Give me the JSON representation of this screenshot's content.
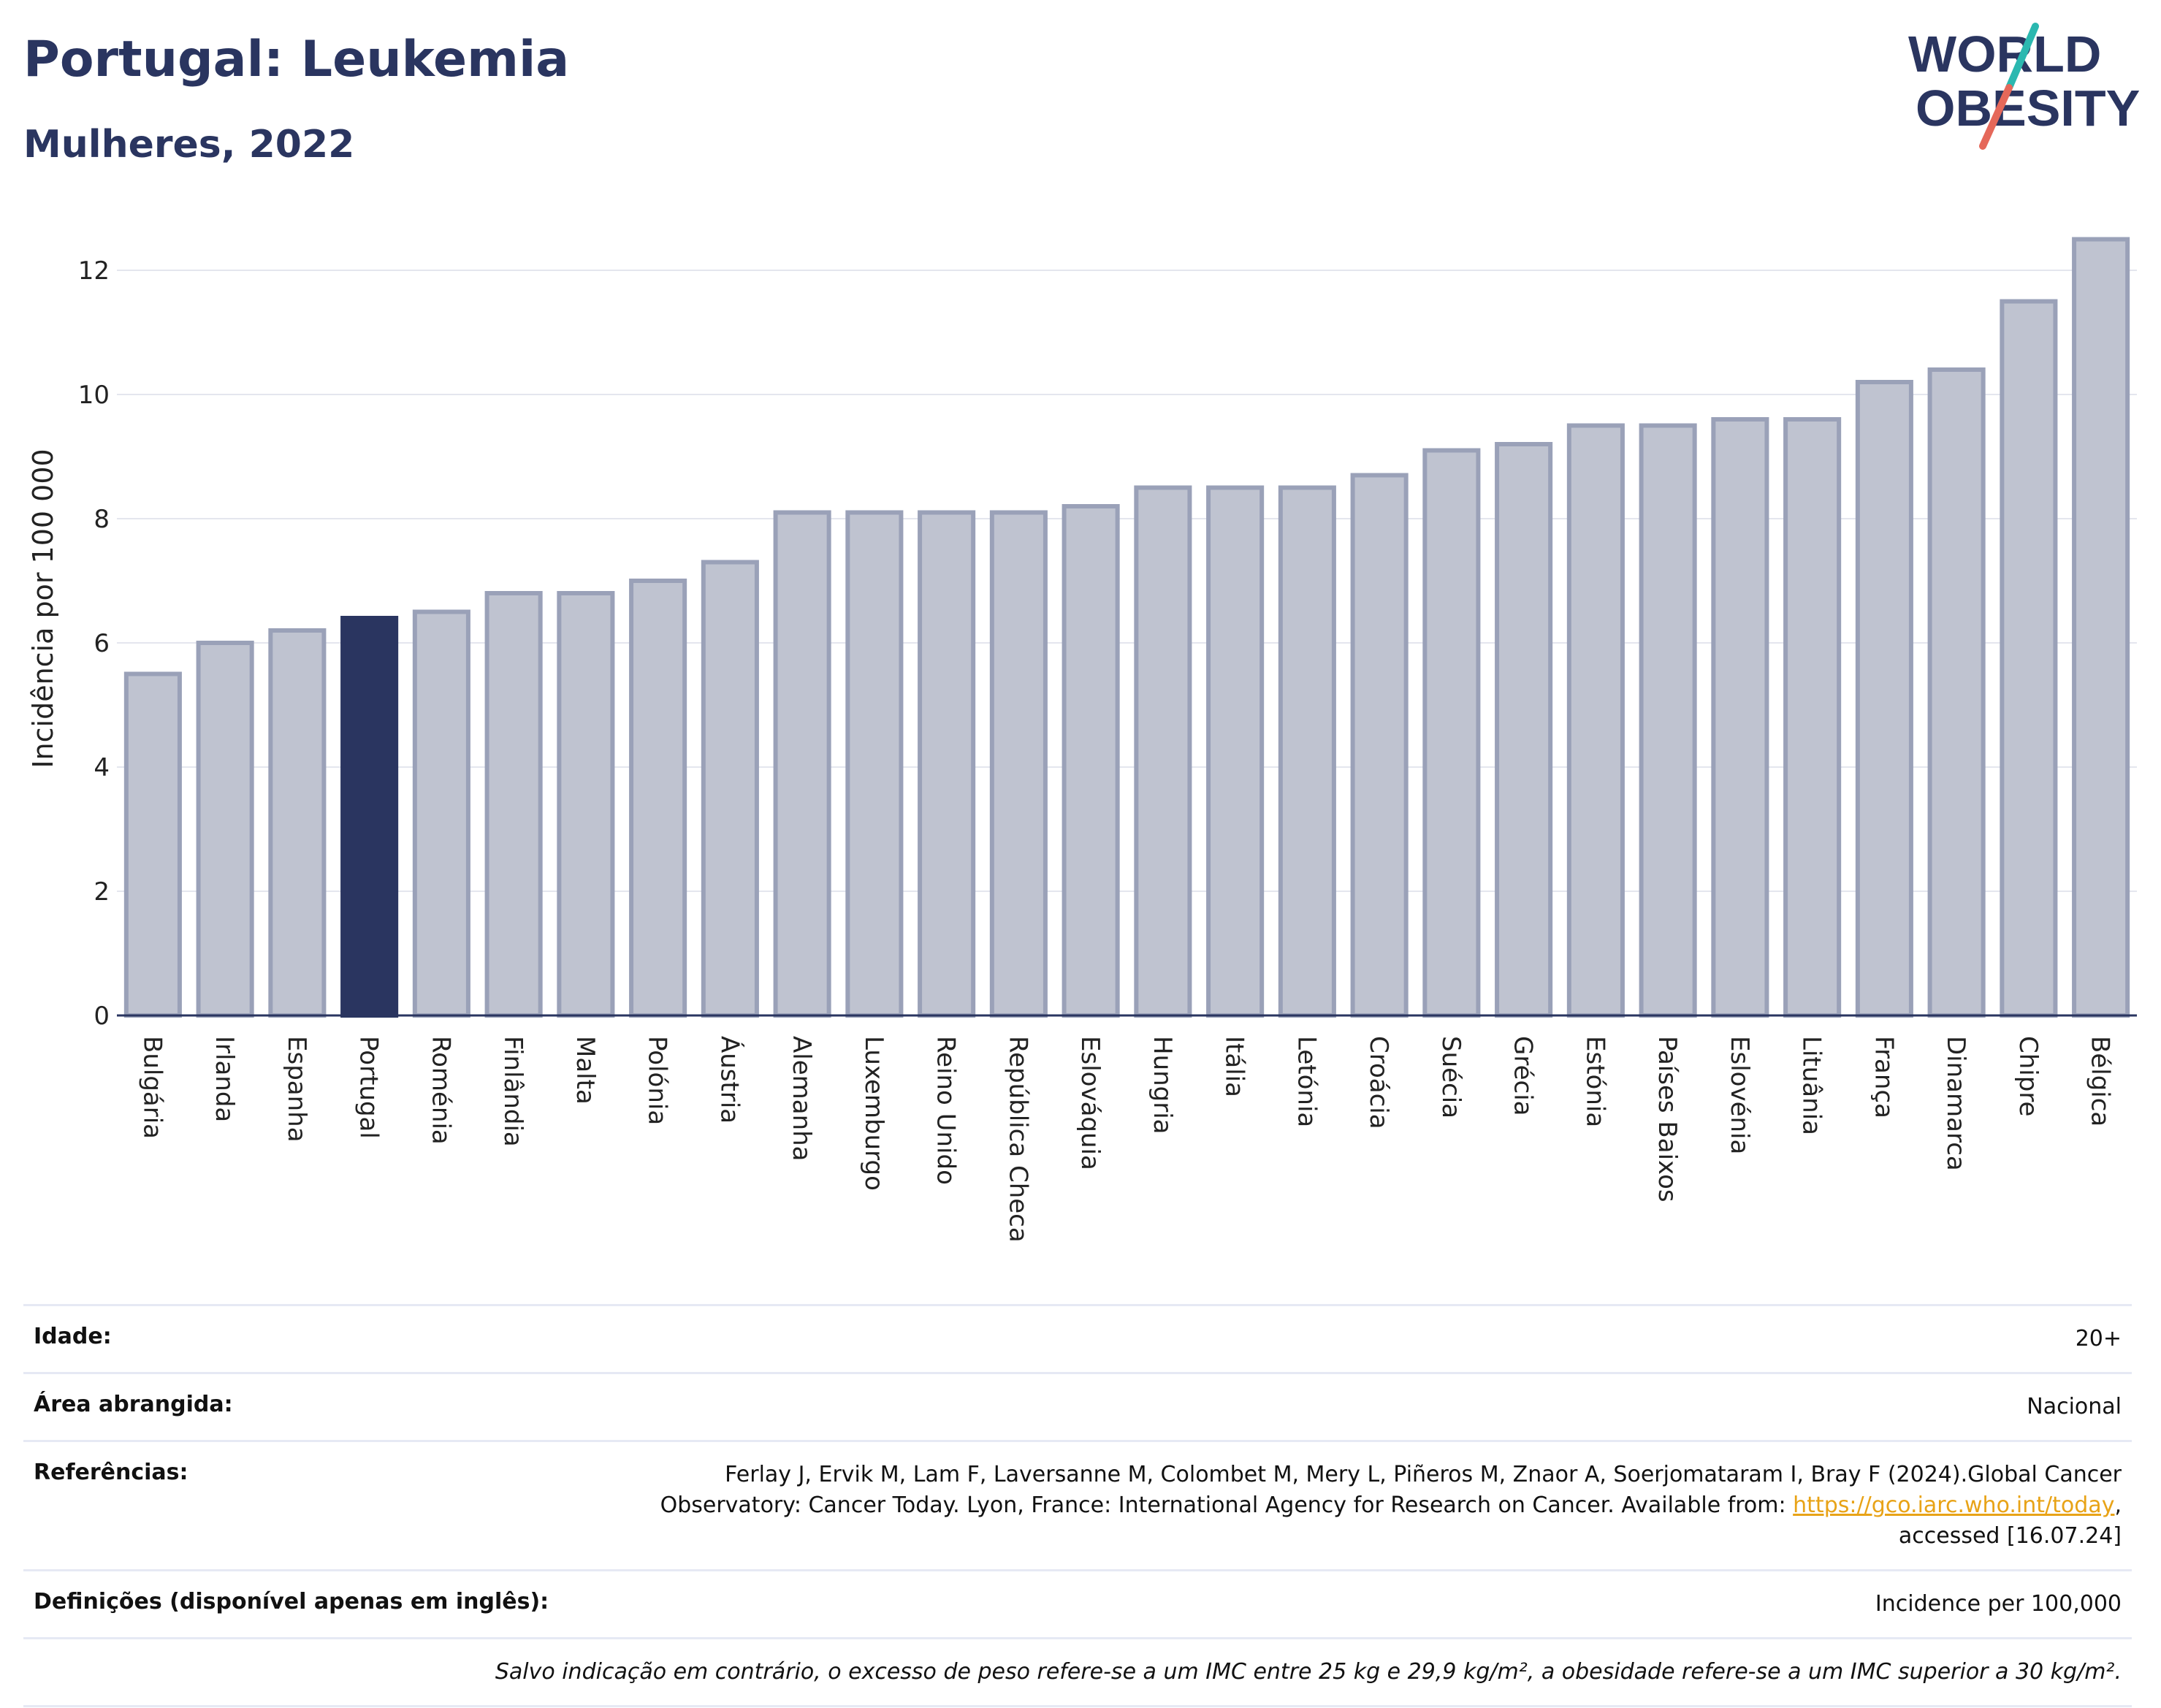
{
  "header": {
    "title": "Portugal: Leukemia",
    "subtitle": "Mulheres, 2022"
  },
  "logo": {
    "line1": "WORLD",
    "line2": "OBESITY"
  },
  "colors": {
    "highlight": "#2a3560",
    "bar_fill": "#bfc3d0",
    "bar_stroke": "#9aa1b8",
    "accent_teal": "#2bb8b0",
    "accent_red": "#e5685a"
  },
  "chart_data": {
    "type": "bar",
    "ylabel": "Incidência por 100 000",
    "ylim": [
      0,
      13
    ],
    "yticks": [
      0,
      2,
      4,
      6,
      8,
      10,
      12
    ],
    "grid": true,
    "highlight": "Portugal",
    "categories": [
      "Bulgária",
      "Irlanda",
      "Espanha",
      "Portugal",
      "Roménia",
      "Finlândia",
      "Malta",
      "Polónia",
      "Áustria",
      "Alemanha",
      "Luxemburgo",
      "Reino Unido",
      "República Checa",
      "Eslováquia",
      "Hungria",
      "Itália",
      "Letónia",
      "Croácia",
      "Suécia",
      "Grécia",
      "Estónia",
      "Países Baixos",
      "Eslovénia",
      "Lituânia",
      "França",
      "Dinamarca",
      "Chipre",
      "Bélgica"
    ],
    "values": [
      5.5,
      6.0,
      6.2,
      6.4,
      6.5,
      6.8,
      6.8,
      7.0,
      7.3,
      8.1,
      8.1,
      8.1,
      8.1,
      8.2,
      8.5,
      8.5,
      8.5,
      8.7,
      9.1,
      9.2,
      9.5,
      9.5,
      9.6,
      9.6,
      10.2,
      10.4,
      11.5,
      12.5
    ]
  },
  "info": {
    "age_label": "Idade:",
    "age_value": "20+",
    "area_label": "Área abrangida:",
    "area_value": "Nacional",
    "refs_label": "Referências:",
    "refs_line1": "Ferlay J, Ervik M, Lam F, Laversanne M, Colombet M, Mery L, Piñeros M, Znaor A, Soerjomataram I, Bray F (2024).Global Cancer",
    "refs_line2_pre": "Observatory: Cancer Today. Lyon, France: International Agency for Research on Cancer. Available from: ",
    "refs_link": "https://gco.iarc.who.int/today",
    "refs_line2_post": ",",
    "refs_line3": "accessed [16.07.24]",
    "defs_label": "Definições (disponível apenas em inglês):",
    "defs_value": "Incidence per 100,000",
    "footnote": "Salvo indicação em contrário, o excesso de peso refere-se a um IMC entre 25 kg e 29,9 kg/m², a obesidade refere-se a um IMC superior a 30 kg/m²."
  }
}
